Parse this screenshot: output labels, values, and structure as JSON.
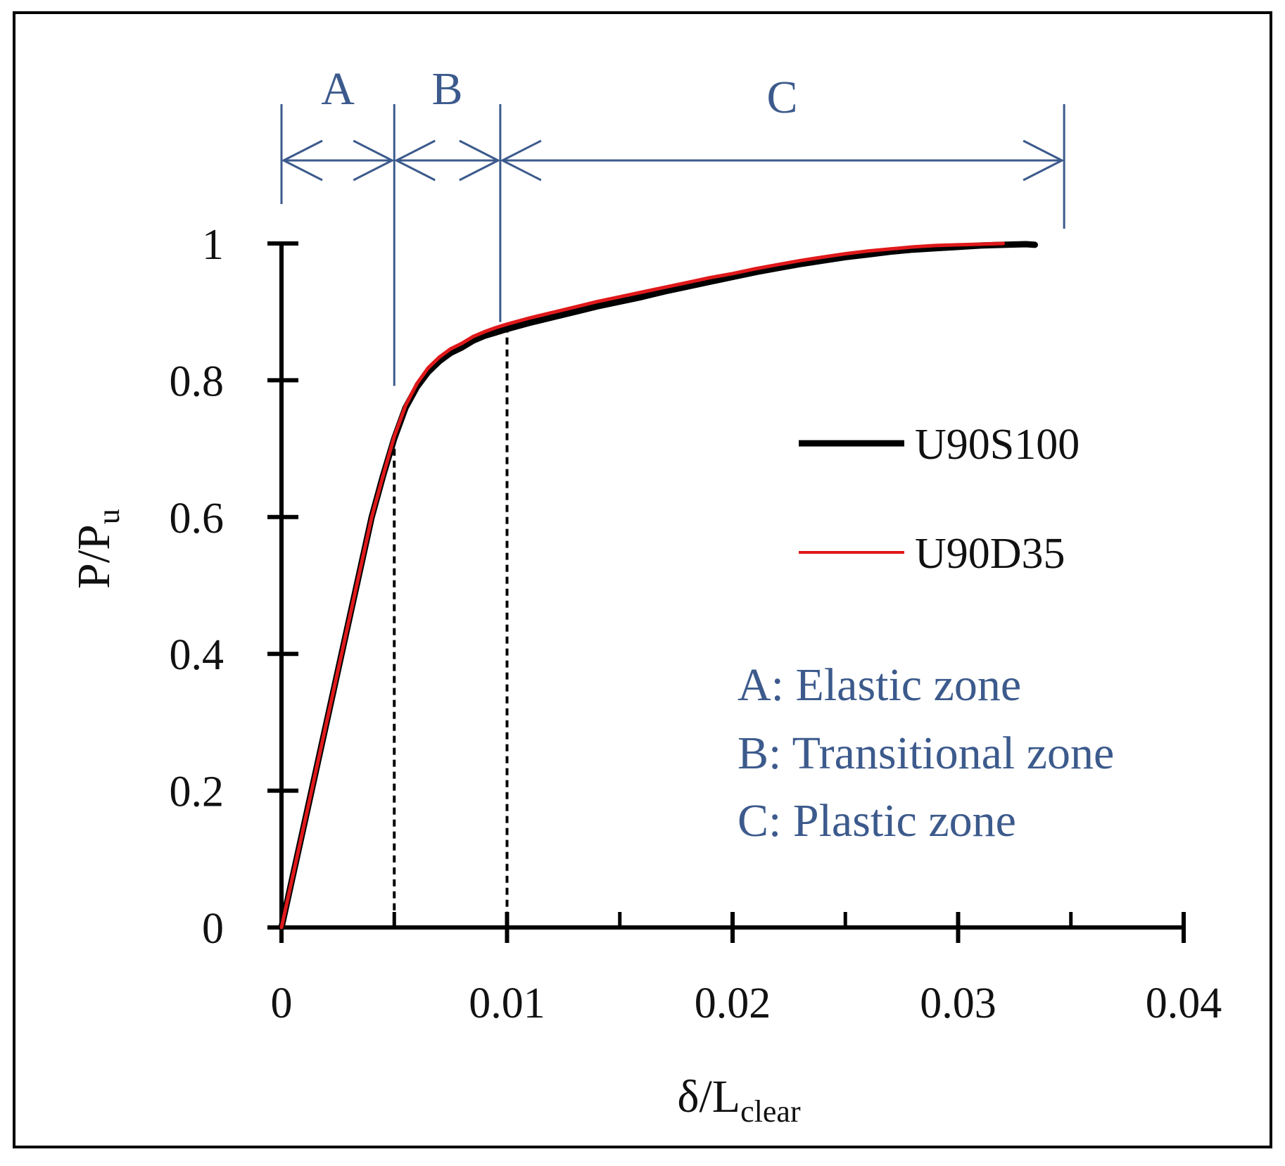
{
  "chart_data": {
    "type": "line",
    "title": "",
    "xlabel": {
      "main": "δ/L",
      "sub": "clear"
    },
    "ylabel": {
      "main": "P/P",
      "sub": "u"
    },
    "xlim": [
      0,
      0.04
    ],
    "ylim": [
      0,
      1
    ],
    "x_ticks": [
      0,
      0.01,
      0.02,
      0.03,
      0.04
    ],
    "x_tick_labels": [
      "0",
      "0.01",
      "0.02",
      "0.03",
      "0.04"
    ],
    "x_minor_ticks": [
      0.005,
      0.015,
      0.025,
      0.035
    ],
    "y_ticks": [
      0,
      0.2,
      0.4,
      0.6,
      0.8,
      1
    ],
    "y_tick_labels": [
      "0",
      "0.2",
      "0.4",
      "0.6",
      "0.8",
      "1"
    ],
    "grid": false,
    "legend_position": "right-middle",
    "series": [
      {
        "name": "U90S100",
        "color": "#000000",
        "x": [
          0,
          0.001,
          0.002,
          0.003,
          0.004,
          0.0045,
          0.005,
          0.0055,
          0.006,
          0.0065,
          0.007,
          0.0075,
          0.008,
          0.0085,
          0.009,
          0.0095,
          0.01,
          0.011,
          0.012,
          0.013,
          0.014,
          0.015,
          0.016,
          0.017,
          0.018,
          0.019,
          0.02,
          0.021,
          0.022,
          0.023,
          0.024,
          0.025,
          0.026,
          0.027,
          0.028,
          0.029,
          0.03,
          0.031,
          0.032,
          0.033,
          0.0334
        ],
        "y": [
          0,
          0.15,
          0.3,
          0.45,
          0.6,
          0.66,
          0.715,
          0.76,
          0.79,
          0.812,
          0.828,
          0.84,
          0.848,
          0.858,
          0.865,
          0.87,
          0.875,
          0.884,
          0.892,
          0.9,
          0.908,
          0.915,
          0.922,
          0.93,
          0.937,
          0.944,
          0.951,
          0.958,
          0.964,
          0.97,
          0.975,
          0.98,
          0.984,
          0.988,
          0.991,
          0.993,
          0.995,
          0.997,
          0.998,
          0.999,
          0.998
        ]
      },
      {
        "name": "U90D35",
        "color": "#e0191b",
        "x": [
          0,
          0.001,
          0.002,
          0.003,
          0.004,
          0.0045,
          0.005,
          0.0055,
          0.006,
          0.0065,
          0.007,
          0.0075,
          0.008,
          0.0085,
          0.009,
          0.0095,
          0.01,
          0.011,
          0.012,
          0.013,
          0.014,
          0.015,
          0.016,
          0.017,
          0.018,
          0.019,
          0.02,
          0.021,
          0.022,
          0.023,
          0.024,
          0.025,
          0.026,
          0.027,
          0.028,
          0.029,
          0.03,
          0.031,
          0.032
        ],
        "y": [
          0,
          0.15,
          0.3,
          0.45,
          0.6,
          0.66,
          0.718,
          0.763,
          0.795,
          0.818,
          0.834,
          0.846,
          0.854,
          0.864,
          0.871,
          0.877,
          0.882,
          0.891,
          0.899,
          0.907,
          0.915,
          0.922,
          0.929,
          0.936,
          0.943,
          0.95,
          0.956,
          0.963,
          0.969,
          0.975,
          0.98,
          0.985,
          0.989,
          0.992,
          0.995,
          0.997,
          0.998,
          0.999,
          1.0
        ]
      }
    ],
    "zones": [
      {
        "label": "A",
        "x_start": 0,
        "x_end": 0.005
      },
      {
        "label": "B",
        "x_start": 0.005,
        "x_end": 0.0097
      },
      {
        "label": "C",
        "x_start": 0.0097,
        "x_end": 0.0347
      }
    ],
    "zone_dividers": [
      {
        "x": 0.005,
        "y_top": 0.8
      },
      {
        "x": 0.0097,
        "y_top": 0.88
      }
    ],
    "dashed_markers": [
      {
        "x": 0.005,
        "y": 0.7
      },
      {
        "x": 0.01,
        "y": 0.88
      }
    ],
    "zone_descriptions": [
      "A: Elastic zone",
      "B: Transitional zone",
      "C: Plastic zone"
    ],
    "annotation_color": "#3c5a8c"
  }
}
